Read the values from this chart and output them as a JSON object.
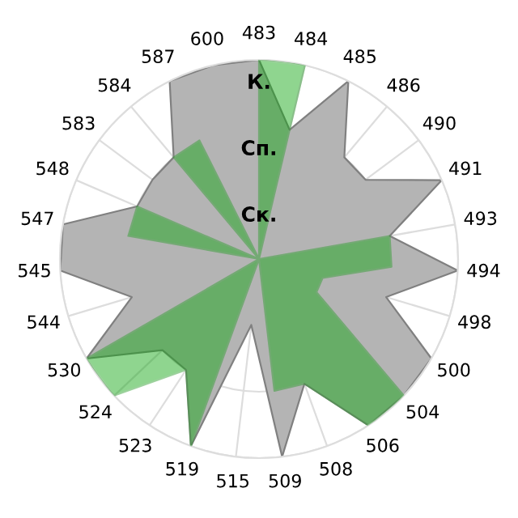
{
  "chart_data": {
    "type": "radar",
    "categories": [
      "483",
      "484",
      "485",
      "486",
      "490",
      "491",
      "493",
      "494",
      "498",
      "500",
      "504",
      "506",
      "508",
      "509",
      "515",
      "519",
      "523",
      "524",
      "530",
      "544",
      "545",
      "547",
      "548",
      "583",
      "584",
      "587",
      "600"
    ],
    "series": [
      {
        "color": "#b4b4b4",
        "values": [
          3,
          2,
          3,
          2,
          2,
          3,
          2,
          3,
          2,
          3,
          3,
          3,
          2,
          3,
          1,
          3,
          2,
          2,
          3,
          2,
          3,
          3,
          2,
          2,
          2,
          3,
          3
        ]
      },
      {
        "color": "#13a613",
        "values": [
          3,
          3,
          0,
          0,
          0,
          0,
          2,
          2,
          1,
          1,
          3,
          3,
          2,
          2,
          0,
          3,
          2,
          3,
          3,
          0,
          0,
          2,
          2,
          0,
          2,
          2,
          0
        ]
      }
    ],
    "ylim": [
      0,
      3
    ],
    "yticks": [
      {
        "value": 1,
        "label": "Ск."
      },
      {
        "value": 2,
        "label": "Сп."
      },
      {
        "value": 3,
        "label": "К."
      }
    ],
    "grid": true,
    "legend": false
  }
}
